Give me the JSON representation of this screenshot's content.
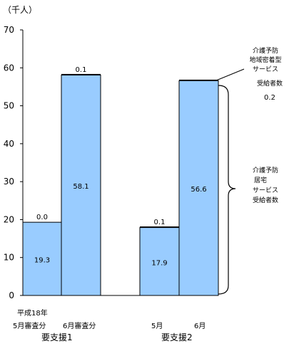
{
  "chart_data": {
    "type": "bar",
    "unit_label": "（千人）",
    "ylim": [
      0,
      70
    ],
    "y_ticks": [
      "0",
      "10",
      "20",
      "30",
      "40",
      "50",
      "60",
      "70"
    ],
    "bar_color": "#99ccff",
    "bars": [
      {
        "value": 19.3,
        "value_label": "19.3",
        "top_value": 0.0,
        "top_label": "0.0"
      },
      {
        "value": 58.1,
        "value_label": "58.1",
        "top_value": 0.1,
        "top_label": "0.1"
      },
      {
        "value": 17.9,
        "value_label": "17.9",
        "top_value": 0.1,
        "top_label": "0.1"
      },
      {
        "value": 56.6,
        "value_label": "56.6",
        "top_value": 0.2,
        "top_label": ""
      }
    ],
    "x_labels": {
      "g1_year": "平成18年",
      "g1_m1": "5月審査分",
      "g1_m2": "6月審査分",
      "g1_name": "要支援1",
      "g2_m1": "5月",
      "g2_m2": "6月",
      "g2_name": "要支援2"
    },
    "annotations": {
      "top_lines": [
        "介護予防",
        "地域密着型",
        "サービス",
        "受給者数"
      ],
      "top_value": "0.2",
      "brace_lines": [
        "介護予防",
        "居宅",
        "サービス",
        "受給者数"
      ]
    }
  }
}
